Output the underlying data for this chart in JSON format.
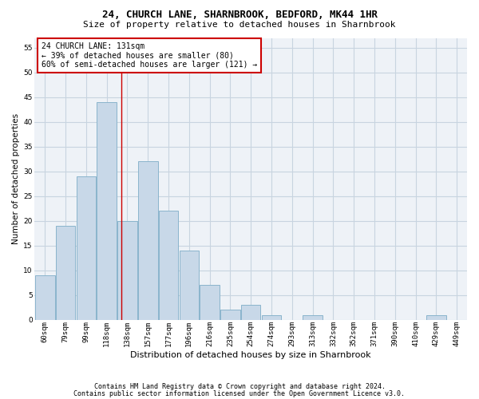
{
  "title1": "24, CHURCH LANE, SHARNBROOK, BEDFORD, MK44 1HR",
  "title2": "Size of property relative to detached houses in Sharnbrook",
  "xlabel": "Distribution of detached houses by size in Sharnbrook",
  "ylabel": "Number of detached properties",
  "categories": [
    "60sqm",
    "79sqm",
    "99sqm",
    "118sqm",
    "138sqm",
    "157sqm",
    "177sqm",
    "196sqm",
    "216sqm",
    "235sqm",
    "254sqm",
    "274sqm",
    "293sqm",
    "313sqm",
    "332sqm",
    "352sqm",
    "371sqm",
    "390sqm",
    "410sqm",
    "429sqm",
    "449sqm"
  ],
  "values": [
    9,
    19,
    29,
    44,
    20,
    32,
    22,
    14,
    7,
    2,
    3,
    1,
    0,
    1,
    0,
    0,
    0,
    0,
    0,
    1,
    0
  ],
  "bar_color": "#c8d8e8",
  "bar_edge_color": "#8ab4cc",
  "grid_color": "#c8d4e0",
  "annotation_box_color": "#cc0000",
  "vline_color": "#cc0000",
  "vline_position": 3.72,
  "annotation_line1": "24 CHURCH LANE: 131sqm",
  "annotation_line2": "← 39% of detached houses are smaller (80)",
  "annotation_line3": "60% of semi-detached houses are larger (121) →",
  "ylim": [
    0,
    57
  ],
  "yticks": [
    0,
    5,
    10,
    15,
    20,
    25,
    30,
    35,
    40,
    45,
    50,
    55
  ],
  "footer1": "Contains HM Land Registry data © Crown copyright and database right 2024.",
  "footer2": "Contains public sector information licensed under the Open Government Licence v3.0.",
  "background_color": "#eef2f7",
  "title1_fontsize": 9,
  "title2_fontsize": 8,
  "ylabel_fontsize": 7.5,
  "xlabel_fontsize": 8,
  "tick_fontsize": 6.5,
  "annotation_fontsize": 7,
  "footer_fontsize": 6
}
